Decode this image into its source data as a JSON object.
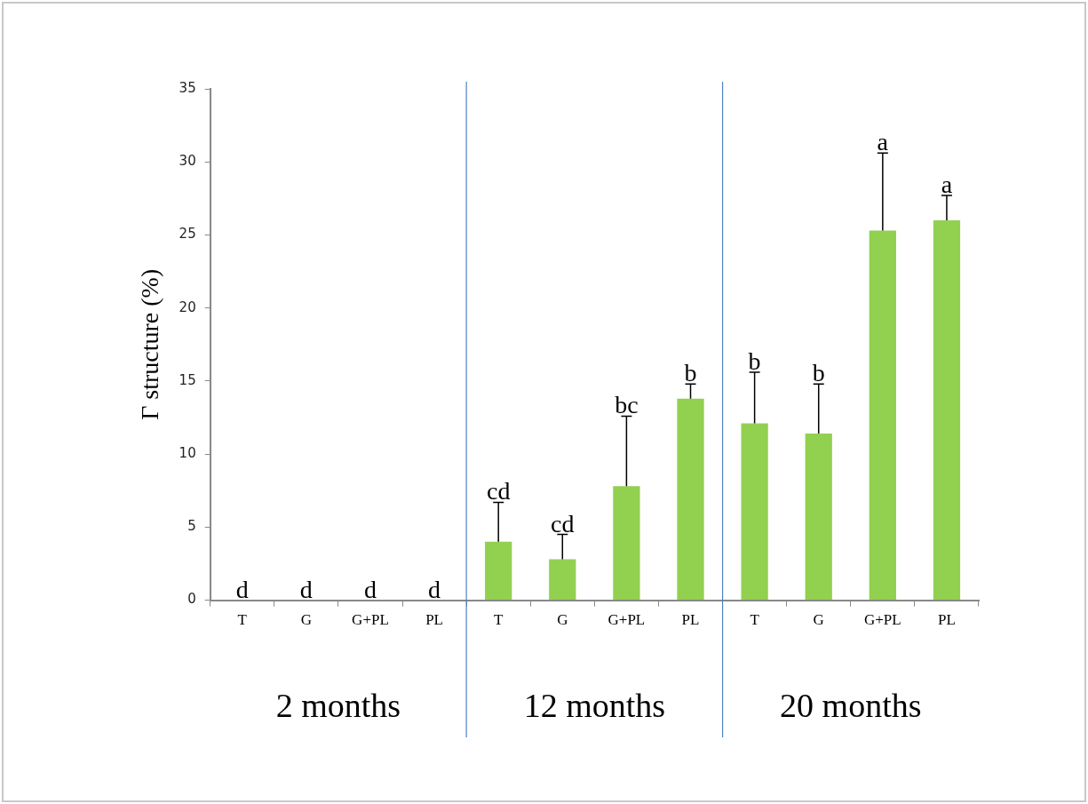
{
  "chart_data": {
    "type": "bar",
    "ylabel": "Γ structure (%)",
    "categories": [
      "T",
      "G",
      "G+PL",
      "PL",
      "T",
      "G",
      "G+PL",
      "PL",
      "T",
      "G",
      "G+PL",
      "PL"
    ],
    "values": [
      0,
      0,
      0,
      0,
      4.0,
      2.8,
      7.8,
      13.8,
      12.1,
      11.4,
      25.3,
      26.0
    ],
    "errors": [
      null,
      null,
      null,
      null,
      [
        4.0,
        6.7
      ],
      [
        2.8,
        4.5
      ],
      [
        7.8,
        12.6
      ],
      [
        13.8,
        14.8
      ],
      [
        12.1,
        15.6
      ],
      [
        11.4,
        14.8
      ],
      [
        25.3,
        30.6
      ],
      [
        26.0,
        27.7
      ]
    ],
    "value_labels": [
      "d",
      "d",
      "d",
      "d",
      "cd",
      "cd",
      "bc",
      "b",
      "b",
      "b",
      "a",
      "a"
    ],
    "color": "#92d050",
    "ylim": [
      0,
      35
    ],
    "yticks": [
      0,
      5,
      10,
      15,
      20,
      25,
      30,
      35
    ],
    "grid": false,
    "legend": false,
    "annotations": [
      "2 months",
      "12 months",
      "20 months"
    ]
  }
}
